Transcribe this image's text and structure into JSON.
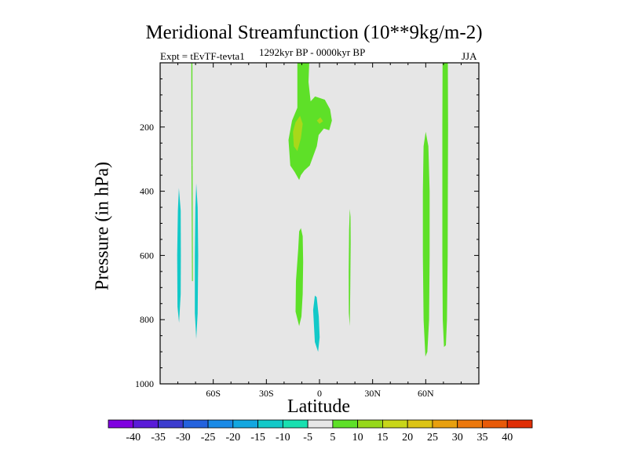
{
  "chart_data": {
    "type": "contour",
    "title": "Meridional Streamfunction (10**9kg/m-2)",
    "left_label": "Expt = tEvTF-tevta1",
    "center_label": "1292kyr BP - 0000kyr BP",
    "right_label": "JJA",
    "xlabel": "Latitude",
    "ylabel": "Pressure (in hPa)",
    "xlim": [
      -90,
      90
    ],
    "ylim": [
      1000,
      0
    ],
    "x_ticks": [
      {
        "value": -60,
        "label": "60S"
      },
      {
        "value": -30,
        "label": "30S"
      },
      {
        "value": 0,
        "label": "0"
      },
      {
        "value": 30,
        "label": "30N"
      },
      {
        "value": 60,
        "label": "60N"
      }
    ],
    "y_ticks": [
      {
        "value": 200,
        "label": "200"
      },
      {
        "value": 400,
        "label": "400"
      },
      {
        "value": 600,
        "label": "600"
      },
      {
        "value": 800,
        "label": "800"
      },
      {
        "value": 1000,
        "label": "1000"
      }
    ],
    "background_color": "#e6e6e6",
    "colorbar": {
      "levels": [
        "-40",
        "-35",
        "-30",
        "-25",
        "-20",
        "-15",
        "-10",
        "-5",
        "5",
        "10",
        "15",
        "20",
        "25",
        "30",
        "35",
        "40"
      ],
      "colors": [
        "#7f00e0",
        "#5a1bd8",
        "#3c3ccf",
        "#2462dd",
        "#1a8ae6",
        "#13a7e0",
        "#12c9c8",
        "#19e0b0",
        "#e6e6e6",
        "#5ee028",
        "#96d81a",
        "#c8d619",
        "#dcc414",
        "#e8a00f",
        "#ec780c",
        "#e85a08",
        "#e02e05"
      ]
    },
    "regions": [
      {
        "name": "lat-72-column-upper",
        "color": "#5ee028",
        "points": [
          [
            -72.4,
            0
          ],
          [
            -71.8,
            0
          ],
          [
            -71.7,
            320
          ],
          [
            -72.3,
            320
          ]
        ]
      },
      {
        "name": "lat-72-column-lower",
        "color": "#5ee028",
        "points": [
          [
            -72.3,
            320
          ],
          [
            -71.7,
            320
          ],
          [
            -71.5,
            680
          ],
          [
            -72.0,
            680
          ]
        ]
      },
      {
        "name": "lat-14-upper-tongue",
        "color": "#5ee028",
        "points": [
          [
            -12.5,
            0
          ],
          [
            -5.8,
            0
          ],
          [
            -6.2,
            60
          ],
          [
            -5.0,
            120
          ],
          [
            -2.5,
            105
          ],
          [
            3.0,
            115
          ],
          [
            6.0,
            145
          ],
          [
            7.0,
            180
          ],
          [
            5.5,
            210
          ],
          [
            2.5,
            205
          ],
          [
            -0.5,
            225
          ],
          [
            -1.5,
            260
          ],
          [
            -5.5,
            320
          ],
          [
            -8.5,
            335
          ],
          [
            -10.5,
            350
          ],
          [
            -11.5,
            365
          ],
          [
            -14.0,
            340
          ],
          [
            -16.5,
            320
          ],
          [
            -17.5,
            240
          ],
          [
            -15.5,
            180
          ],
          [
            -12.5,
            140
          ]
        ]
      },
      {
        "name": "lat-14-core",
        "color": "#a8d81a",
        "points": [
          [
            -15.0,
            215
          ],
          [
            -13.5,
            185
          ],
          [
            -11.0,
            165
          ],
          [
            -9.5,
            190
          ],
          [
            -10.5,
            235
          ],
          [
            -12.5,
            275
          ],
          [
            -14.5,
            260
          ]
        ]
      },
      {
        "name": "eq-core",
        "color": "#a8d81a",
        "points": [
          [
            -1.5,
            180
          ],
          [
            0.5,
            170
          ],
          [
            2.0,
            182
          ],
          [
            0.0,
            190
          ]
        ]
      },
      {
        "name": "lat-11-lower-column",
        "color": "#5ee028",
        "points": [
          [
            -10.5,
            515
          ],
          [
            -9.5,
            540
          ],
          [
            -9.2,
            620
          ],
          [
            -9.5,
            720
          ],
          [
            -10.2,
            790
          ],
          [
            -11.5,
            820
          ],
          [
            -13.5,
            775
          ],
          [
            -13.3,
            680
          ],
          [
            -12.0,
            580
          ],
          [
            -11.5,
            525
          ]
        ]
      },
      {
        "name": "lat-17N-column",
        "color": "#5ee028",
        "points": [
          [
            17.1,
            455
          ],
          [
            17.5,
            480
          ],
          [
            17.6,
            560
          ],
          [
            17.4,
            700
          ],
          [
            17.1,
            820
          ],
          [
            16.6,
            780
          ],
          [
            16.5,
            650
          ],
          [
            16.7,
            520
          ]
        ]
      },
      {
        "name": "lat-60N-column",
        "color": "#5ee028",
        "points": [
          [
            60.0,
            215
          ],
          [
            61.5,
            260
          ],
          [
            62.2,
            400
          ],
          [
            62.2,
            600
          ],
          [
            61.9,
            800
          ],
          [
            60.9,
            900
          ],
          [
            59.8,
            915
          ],
          [
            58.8,
            800
          ],
          [
            58.4,
            600
          ],
          [
            58.4,
            400
          ],
          [
            58.8,
            260
          ]
        ]
      },
      {
        "name": "lat-70N-column",
        "color": "#5ee028",
        "points": [
          [
            69.5,
            0
          ],
          [
            72.5,
            0
          ],
          [
            72.6,
            200
          ],
          [
            72.5,
            400
          ],
          [
            72.4,
            600
          ],
          [
            72.0,
            800
          ],
          [
            71.4,
            880
          ],
          [
            70.3,
            885
          ],
          [
            69.6,
            800
          ],
          [
            69.4,
            600
          ],
          [
            69.4,
            400
          ],
          [
            69.4,
            200
          ]
        ]
      },
      {
        "name": "lat-79S-column",
        "color": "#12c9c8",
        "points": [
          [
            -79.4,
            390
          ],
          [
            -78.4,
            460
          ],
          [
            -78.3,
            600
          ],
          [
            -78.4,
            720
          ],
          [
            -79.3,
            810
          ],
          [
            -80.2,
            760
          ],
          [
            -80.4,
            600
          ],
          [
            -80.0,
            460
          ]
        ]
      },
      {
        "name": "lat-69S-column",
        "color": "#12c9c8",
        "points": [
          [
            -69.6,
            375
          ],
          [
            -68.8,
            450
          ],
          [
            -68.5,
            600
          ],
          [
            -68.8,
            780
          ],
          [
            -69.6,
            860
          ],
          [
            -70.4,
            780
          ],
          [
            -70.4,
            600
          ],
          [
            -70.1,
            450
          ]
        ]
      },
      {
        "name": "eq-south-column",
        "color": "#12c9c8",
        "points": [
          [
            -2.6,
            725
          ],
          [
            -1.6,
            730
          ],
          [
            -0.4,
            790
          ],
          [
            0.1,
            855
          ],
          [
            -0.8,
            900
          ],
          [
            -2.6,
            870
          ],
          [
            -3.6,
            770
          ]
        ]
      }
    ]
  }
}
